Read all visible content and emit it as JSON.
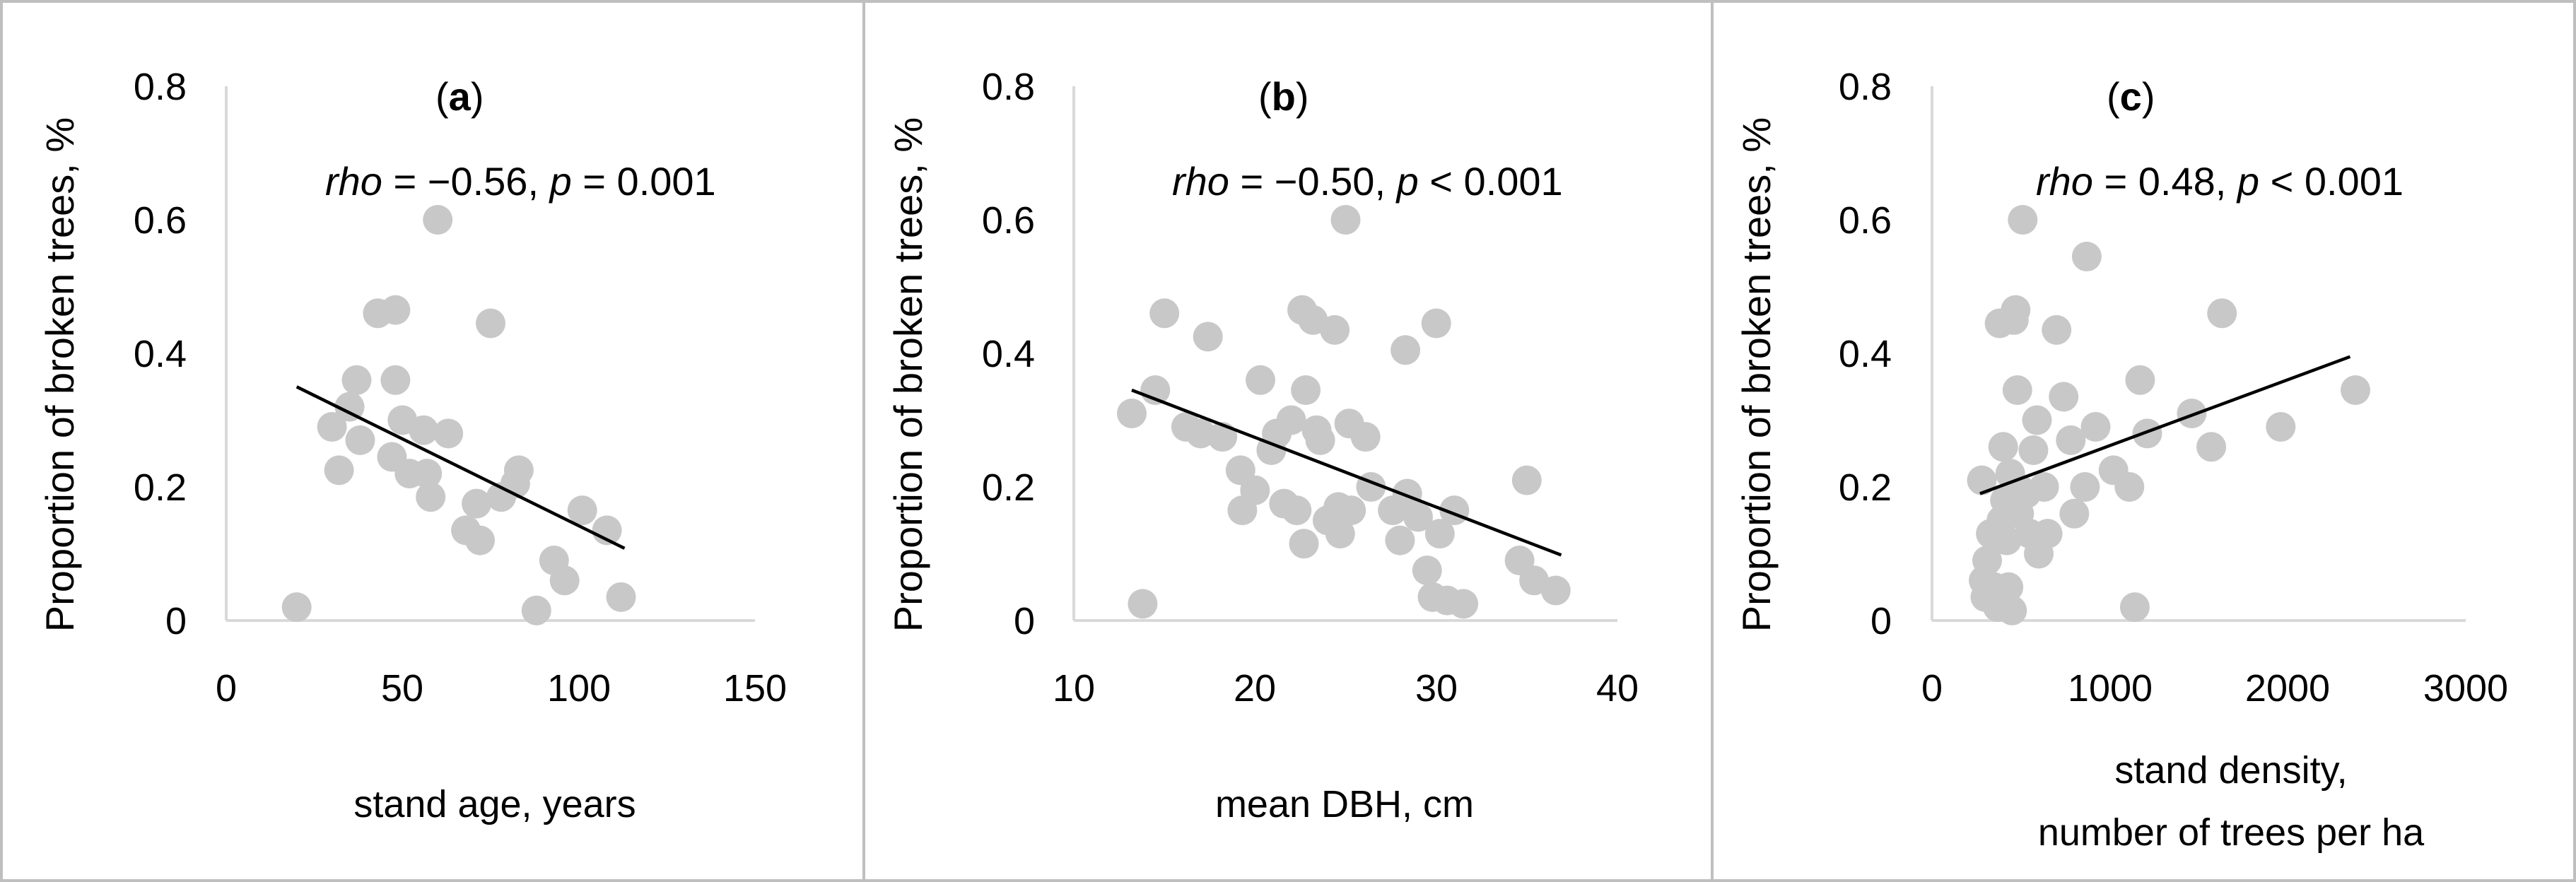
{
  "chart_data": [
    {
      "type": "scatter",
      "panel_label": "a",
      "annotation": {
        "rho_symbol": "rho",
        "rho_sign": " = −0.56, ",
        "p_symbol": "p",
        "p_sign": " = 0.001"
      },
      "ylabel": "Proportion of broken trees, %",
      "xlabel_lines": [
        "stand age, years"
      ],
      "xlim": [
        0,
        150
      ],
      "ylim": [
        0,
        0.8
      ],
      "xticks": [
        0,
        50,
        100,
        150
      ],
      "yticks": [
        0,
        0.2,
        0.4,
        0.6,
        0.8
      ],
      "xtick_labels": [
        "0",
        "50",
        "100",
        "150"
      ],
      "ytick_labels": [
        "0",
        "0.2",
        "0.4",
        "0.6",
        "0.8"
      ],
      "points": [
        [
          20,
          0.02
        ],
        [
          30,
          0.29
        ],
        [
          32,
          0.225
        ],
        [
          35,
          0.32
        ],
        [
          37,
          0.36
        ],
        [
          38,
          0.27
        ],
        [
          43,
          0.46
        ],
        [
          47,
          0.245
        ],
        [
          48,
          0.36
        ],
        [
          48,
          0.465
        ],
        [
          50,
          0.3
        ],
        [
          52,
          0.22
        ],
        [
          56,
          0.285
        ],
        [
          57,
          0.22
        ],
        [
          58,
          0.185
        ],
        [
          60,
          0.6
        ],
        [
          63,
          0.28
        ],
        [
          68,
          0.135
        ],
        [
          71,
          0.175
        ],
        [
          72,
          0.12
        ],
        [
          75,
          0.445
        ],
        [
          78,
          0.185
        ],
        [
          82,
          0.205
        ],
        [
          83,
          0.225
        ],
        [
          88,
          0.015
        ],
        [
          93,
          0.09
        ],
        [
          96,
          0.06
        ],
        [
          101,
          0.165
        ],
        [
          108,
          0.135
        ],
        [
          112,
          0.035
        ]
      ],
      "trendline": {
        "x": [
          20,
          113
        ],
        "y": [
          0.35,
          0.108
        ]
      },
      "marker_color": "#c8c8c8",
      "line_color": "#000000"
    },
    {
      "type": "scatter",
      "panel_label": "b",
      "annotation": {
        "rho_symbol": "rho",
        "rho_sign": " = −0.50, ",
        "p_symbol": "p",
        "p_sign": " < 0.001"
      },
      "ylabel": "Proportion of broken trees, %",
      "xlabel_lines": [
        "mean DBH, cm"
      ],
      "xlim": [
        10,
        40
      ],
      "ylim": [
        0,
        0.8
      ],
      "xticks": [
        10,
        20,
        30,
        40
      ],
      "yticks": [
        0,
        0.2,
        0.4,
        0.6,
        0.8
      ],
      "xtick_labels": [
        "10",
        "20",
        "30",
        "40"
      ],
      "ytick_labels": [
        "0",
        "0.2",
        "0.4",
        "0.6",
        "0.8"
      ],
      "points": [
        [
          13.2,
          0.31
        ],
        [
          13.8,
          0.025
        ],
        [
          14.5,
          0.345
        ],
        [
          15,
          0.46
        ],
        [
          16.2,
          0.29
        ],
        [
          17,
          0.28
        ],
        [
          17.4,
          0.425
        ],
        [
          18.2,
          0.275
        ],
        [
          19.2,
          0.225
        ],
        [
          19.3,
          0.165
        ],
        [
          20,
          0.195
        ],
        [
          20.3,
          0.36
        ],
        [
          20.9,
          0.255
        ],
        [
          21.2,
          0.28
        ],
        [
          21.6,
          0.175
        ],
        [
          22,
          0.3
        ],
        [
          22.3,
          0.165
        ],
        [
          22.6,
          0.465
        ],
        [
          22.7,
          0.115
        ],
        [
          22.8,
          0.345
        ],
        [
          23.2,
          0.45
        ],
        [
          23.4,
          0.285
        ],
        [
          23.6,
          0.27
        ],
        [
          24,
          0.15
        ],
        [
          24.4,
          0.435
        ],
        [
          24.6,
          0.17
        ],
        [
          24.7,
          0.13
        ],
        [
          25,
          0.6
        ],
        [
          25.2,
          0.295
        ],
        [
          25.3,
          0.165
        ],
        [
          26.1,
          0.275
        ],
        [
          26.4,
          0.2
        ],
        [
          27.6,
          0.165
        ],
        [
          28,
          0.12
        ],
        [
          28.3,
          0.405
        ],
        [
          28.4,
          0.19
        ],
        [
          29,
          0.155
        ],
        [
          29.5,
          0.075
        ],
        [
          29.8,
          0.035
        ],
        [
          30,
          0.445
        ],
        [
          30.2,
          0.13
        ],
        [
          30.6,
          0.03
        ],
        [
          31,
          0.165
        ],
        [
          31.5,
          0.025
        ],
        [
          34.6,
          0.09
        ],
        [
          35,
          0.21
        ],
        [
          35.4,
          0.06
        ],
        [
          36.6,
          0.045
        ]
      ],
      "trendline": {
        "x": [
          13.2,
          36.9
        ],
        "y": [
          0.345,
          0.098
        ]
      },
      "marker_color": "#c8c8c8",
      "line_color": "#000000"
    },
    {
      "type": "scatter",
      "panel_label": "c",
      "annotation": {
        "rho_symbol": "rho",
        "rho_sign": " = 0.48, ",
        "p_symbol": "p",
        "p_sign": " < 0.001"
      },
      "ylabel": "Proportion of broken trees, %",
      "xlabel_lines": [
        "stand density,",
        "number of trees per ha"
      ],
      "xlim": [
        0,
        3000
      ],
      "ylim": [
        0,
        0.8
      ],
      "xticks": [
        0,
        1000,
        2000,
        3000
      ],
      "yticks": [
        0,
        0.2,
        0.4,
        0.6,
        0.8
      ],
      "xtick_labels": [
        "0",
        "1000",
        "2000",
        "3000"
      ],
      "ytick_labels": [
        "0",
        "0.2",
        "0.4",
        "0.6",
        "0.8"
      ],
      "points": [
        [
          280,
          0.21
        ],
        [
          290,
          0.06
        ],
        [
          300,
          0.035
        ],
        [
          310,
          0.09
        ],
        [
          330,
          0.13
        ],
        [
          350,
          0.05
        ],
        [
          370,
          0.02
        ],
        [
          380,
          0.445
        ],
        [
          390,
          0.15
        ],
        [
          400,
          0.26
        ],
        [
          410,
          0.18
        ],
        [
          420,
          0.12
        ],
        [
          430,
          0.05
        ],
        [
          440,
          0.22
        ],
        [
          450,
          0.015
        ],
        [
          460,
          0.45
        ],
        [
          470,
          0.465
        ],
        [
          480,
          0.345
        ],
        [
          490,
          0.16
        ],
        [
          500,
          0.195
        ],
        [
          510,
          0.6
        ],
        [
          530,
          0.19
        ],
        [
          550,
          0.13
        ],
        [
          570,
          0.255
        ],
        [
          590,
          0.3
        ],
        [
          600,
          0.1
        ],
        [
          630,
          0.2
        ],
        [
          650,
          0.13
        ],
        [
          700,
          0.435
        ],
        [
          740,
          0.335
        ],
        [
          780,
          0.27
        ],
        [
          800,
          0.16
        ],
        [
          860,
          0.2
        ],
        [
          870,
          0.545
        ],
        [
          920,
          0.29
        ],
        [
          1020,
          0.225
        ],
        [
          1110,
          0.2
        ],
        [
          1140,
          0.02
        ],
        [
          1170,
          0.36
        ],
        [
          1210,
          0.28
        ],
        [
          1460,
          0.31
        ],
        [
          1570,
          0.26
        ],
        [
          1630,
          0.46
        ],
        [
          1960,
          0.29
        ],
        [
          2380,
          0.345
        ]
      ],
      "trendline": {
        "x": [
          270,
          2350
        ],
        "y": [
          0.19,
          0.395
        ]
      },
      "marker_color": "#c8c8c8",
      "line_color": "#000000"
    }
  ]
}
